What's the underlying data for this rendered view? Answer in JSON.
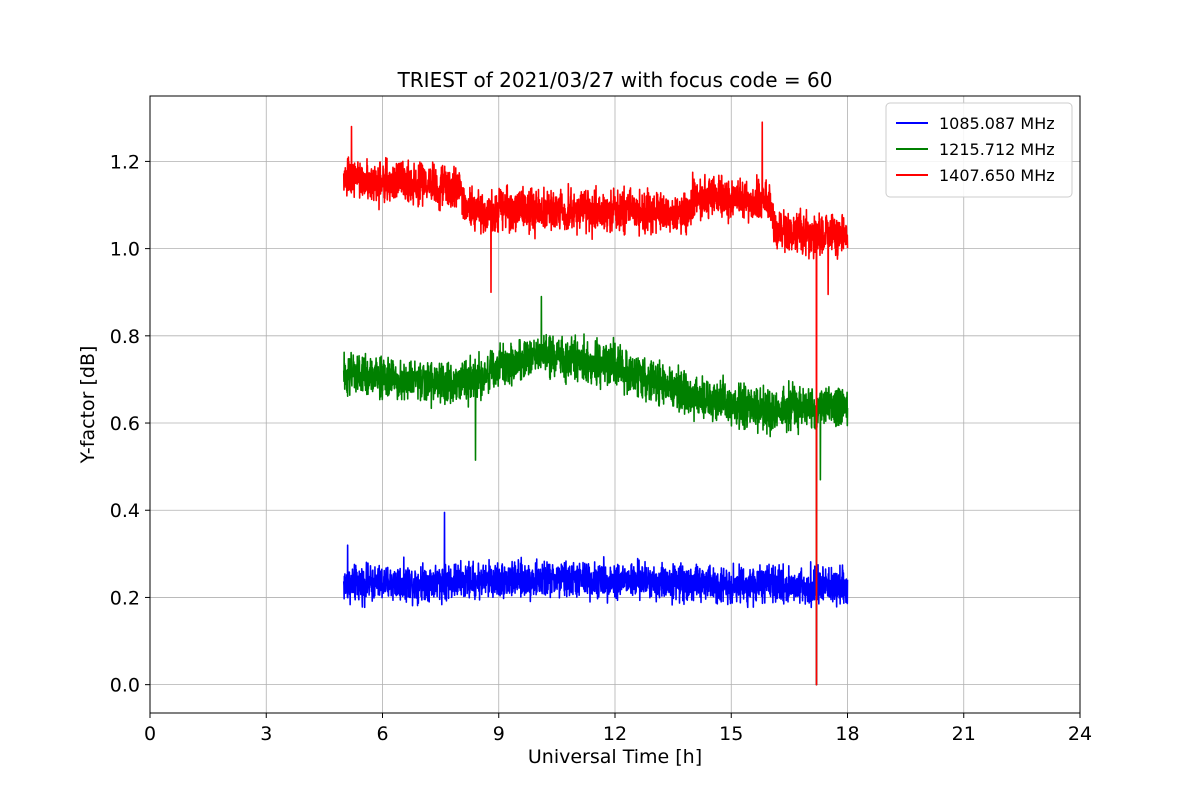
{
  "chart_data": {
    "type": "line",
    "title": "TRIEST of 2021/03/27 with focus code = 60",
    "xlabel": "Universal Time [h]",
    "ylabel": "Y-factor [dB]",
    "xlim": [
      0,
      24
    ],
    "ylim": [
      -0.065,
      1.35
    ],
    "xticks": [
      0,
      3,
      6,
      9,
      12,
      15,
      18,
      21,
      24
    ],
    "yticks": [
      0.0,
      0.2,
      0.4,
      0.6,
      0.8,
      1.0,
      1.2
    ],
    "grid": true,
    "legend_position": "top-right",
    "series": [
      {
        "name": "1085.087 MHz",
        "color": "#0000ff",
        "x_range": [
          5.0,
          18.0
        ],
        "trend": [
          [
            5,
            0.23
          ],
          [
            9,
            0.24
          ],
          [
            12,
            0.24
          ],
          [
            15,
            0.23
          ],
          [
            18,
            0.225
          ]
        ],
        "band_halfwidth": 0.06,
        "spikes": [
          [
            7.6,
            0.395
          ],
          [
            17.2,
            0.0
          ],
          [
            5.1,
            0.32
          ]
        ]
      },
      {
        "name": "1215.712 MHz",
        "color": "#008000",
        "x_range": [
          5.0,
          18.0
        ],
        "trend": [
          [
            5,
            0.71
          ],
          [
            8,
            0.69
          ],
          [
            10,
            0.76
          ],
          [
            12,
            0.73
          ],
          [
            14,
            0.66
          ],
          [
            16,
            0.63
          ],
          [
            18,
            0.64
          ]
        ],
        "band_halfwidth": 0.07,
        "spikes": [
          [
            10.1,
            0.89
          ],
          [
            17.3,
            0.47
          ],
          [
            8.4,
            0.515
          ],
          [
            17.2,
            0.0
          ]
        ]
      },
      {
        "name": "1407.650 MHz",
        "color": "#ff0000",
        "x_range": [
          5.0,
          18.0
        ],
        "trend": [
          [
            5,
            1.16
          ],
          [
            8,
            1.14
          ],
          [
            8.1,
            1.09
          ],
          [
            13.9,
            1.08
          ],
          [
            14.0,
            1.12
          ],
          [
            16.0,
            1.11
          ],
          [
            16.1,
            1.04
          ],
          [
            18,
            1.03
          ]
        ],
        "band_halfwidth": 0.07,
        "spikes": [
          [
            15.8,
            1.29
          ],
          [
            5.2,
            1.28
          ],
          [
            8.8,
            0.9
          ],
          [
            17.2,
            0.0
          ],
          [
            17.5,
            0.895
          ]
        ]
      }
    ]
  }
}
